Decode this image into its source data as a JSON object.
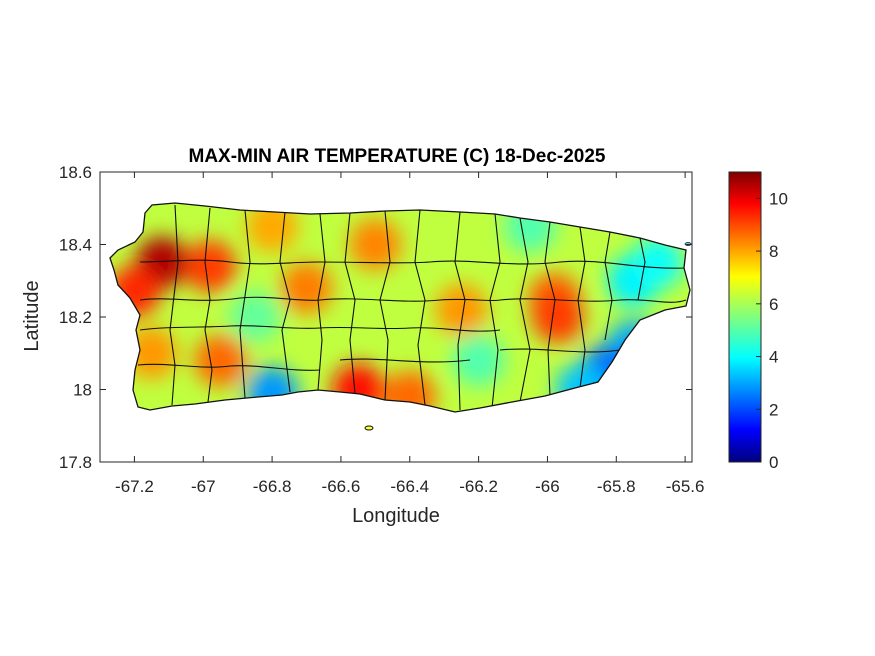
{
  "chart_data": {
    "type": "heatmap",
    "title": "MAX-MIN AIR TEMPERATURE (C) 18-Dec-2025",
    "xlabel": "Longitude",
    "ylabel": "Latitude",
    "xlim": [
      -67.3,
      -65.58
    ],
    "ylim": [
      17.8,
      18.6
    ],
    "xticks": [
      -67.2,
      -67,
      -66.8,
      -66.6,
      -66.4,
      -66.2,
      -66,
      -65.8,
      -65.6
    ],
    "xtick_labels": [
      "-67.2",
      "-67",
      "-66.8",
      "-66.6",
      "-66.4",
      "-66.2",
      "-66",
      "-65.8",
      "-65.6"
    ],
    "yticks": [
      17.8,
      18,
      18.2,
      18.4,
      18.6
    ],
    "ytick_labels": [
      "17.8",
      "18",
      "18.2",
      "18.4",
      "18.6"
    ],
    "colorbar": {
      "colormap": "jet",
      "limits": [
        0,
        11
      ],
      "ticks": [
        0,
        2,
        4,
        6,
        8,
        10
      ],
      "tick_labels": [
        "0",
        "2",
        "4",
        "6",
        "8",
        "10"
      ]
    },
    "background_value": 6.2,
    "hotspots": [
      {
        "lon": -67.12,
        "lat": 18.35,
        "value": 10.5
      },
      {
        "lon": -67.2,
        "lat": 18.27,
        "value": 9.2
      },
      {
        "lon": -66.98,
        "lat": 18.34,
        "value": 9.0
      },
      {
        "lon": -66.55,
        "lat": 18.0,
        "value": 9.5
      },
      {
        "lon": -66.4,
        "lat": 17.98,
        "value": 8.5
      },
      {
        "lon": -66.5,
        "lat": 18.4,
        "value": 8.2
      },
      {
        "lon": -66.95,
        "lat": 18.08,
        "value": 8.5
      },
      {
        "lon": -67.15,
        "lat": 18.1,
        "value": 8.0
      },
      {
        "lon": -65.98,
        "lat": 18.25,
        "value": 8.6
      },
      {
        "lon": -65.97,
        "lat": 18.2,
        "value": 9.0
      },
      {
        "lon": -66.7,
        "lat": 18.28,
        "value": 8.3
      },
      {
        "lon": -66.25,
        "lat": 18.22,
        "value": 8.0
      },
      {
        "lon": -66.8,
        "lat": 18.45,
        "value": 7.8
      }
    ],
    "coldspots": [
      {
        "lon": -65.75,
        "lat": 18.3,
        "value": 4.0
      },
      {
        "lon": -65.68,
        "lat": 18.35,
        "value": 4.2
      },
      {
        "lon": -65.75,
        "lat": 18.12,
        "value": 3.2
      },
      {
        "lon": -65.83,
        "lat": 18.05,
        "value": 2.5
      },
      {
        "lon": -65.9,
        "lat": 18.0,
        "value": 3.5
      },
      {
        "lon": -66.2,
        "lat": 18.08,
        "value": 5.0
      },
      {
        "lon": -66.05,
        "lat": 18.45,
        "value": 5.0
      },
      {
        "lon": -66.85,
        "lat": 18.2,
        "value": 5.2
      },
      {
        "lon": -66.8,
        "lat": 17.99,
        "value": 3.0
      }
    ]
  }
}
